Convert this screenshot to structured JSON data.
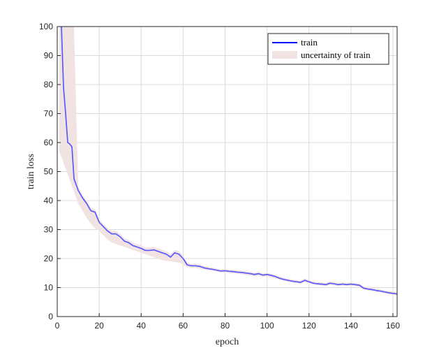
{
  "chart_data": {
    "type": "line",
    "title": "",
    "xlabel": "epoch",
    "ylabel": "train loss",
    "xlim": [
      0,
      162
    ],
    "ylim": [
      0,
      100
    ],
    "xticks": [
      "0",
      "20",
      "40",
      "60",
      "80",
      "100",
      "120",
      "140",
      "160"
    ],
    "yticks": [
      "0",
      "10",
      "20",
      "30",
      "40",
      "50",
      "60",
      "70",
      "80",
      "90",
      "100"
    ],
    "grid": true,
    "legend_position": "top-right",
    "series": [
      {
        "name": "train",
        "color": "#0000ff",
        "x": [
          1,
          2,
          3,
          4,
          5,
          6,
          7,
          8,
          10,
          12,
          14,
          16,
          18,
          20,
          22,
          24,
          26,
          28,
          30,
          32,
          34,
          36,
          38,
          40,
          42,
          44,
          46,
          48,
          50,
          52,
          54,
          56,
          58,
          60,
          62,
          64,
          66,
          68,
          70,
          72,
          74,
          76,
          78,
          80,
          82,
          84,
          86,
          88,
          90,
          92,
          94,
          96,
          98,
          100,
          102,
          104,
          106,
          108,
          110,
          112,
          114,
          116,
          118,
          120,
          122,
          124,
          126,
          128,
          130,
          132,
          134,
          136,
          138,
          140,
          142,
          144,
          146,
          148,
          150,
          152,
          154,
          156,
          158,
          160,
          162
        ],
        "y": [
          140,
          100,
          79,
          70,
          60,
          59.5,
          58.5,
          47.5,
          43.5,
          41,
          39,
          36.5,
          36,
          32.5,
          31,
          29.5,
          28.5,
          28.5,
          27.5,
          26,
          25.5,
          24.5,
          24,
          23.5,
          22.8,
          22.8,
          23,
          22.5,
          22,
          21.5,
          20.5,
          22,
          21.5,
          20,
          17.8,
          17.5,
          17.5,
          17.3,
          16.8,
          16.5,
          16.3,
          16,
          15.7,
          15.8,
          15.6,
          15.5,
          15.3,
          15.2,
          15,
          14.8,
          14.5,
          14.8,
          14.3,
          14.5,
          14.2,
          13.8,
          13.2,
          12.8,
          12.5,
          12.2,
          12,
          11.8,
          12.5,
          12,
          11.5,
          11.3,
          11.2,
          11,
          11.5,
          11.3,
          11,
          11.2,
          11,
          11.2,
          11,
          10.8,
          9.8,
          9.5,
          9.3,
          9,
          8.8,
          8.5,
          8.2,
          8,
          7.8
        ]
      }
    ],
    "uncertainty": {
      "name": "uncertainty of train",
      "color": "#f2e3e3",
      "x": [
        1,
        2,
        3,
        4,
        5,
        6,
        7,
        8,
        10,
        12,
        14,
        16,
        18,
        20,
        22,
        24,
        26,
        28,
        30,
        32,
        34,
        36,
        38,
        40,
        42,
        44,
        46,
        48,
        50,
        52,
        54,
        56,
        58,
        60,
        62,
        64,
        66,
        68,
        70,
        72,
        74,
        76,
        78,
        80,
        82,
        84,
        86,
        88,
        90,
        92,
        94,
        96,
        98,
        100,
        102,
        104,
        106,
        108,
        110,
        112,
        114,
        116,
        118,
        120,
        122,
        124,
        126,
        128,
        130,
        132,
        134,
        136,
        138,
        140,
        142,
        144,
        146,
        148,
        150,
        152,
        154,
        156,
        158,
        160,
        162
      ],
      "lower": [
        57,
        55,
        53,
        51,
        49,
        47,
        45,
        43,
        39,
        36.5,
        34,
        32,
        30.5,
        29.5,
        28,
        26.5,
        25.5,
        25,
        24.5,
        24,
        23.5,
        23,
        22.5,
        22,
        21.5,
        21,
        20.5,
        20,
        19.5,
        19.2,
        19,
        18.8,
        18.6,
        18,
        17,
        16.8,
        16.8,
        16.5,
        16.2,
        16,
        15.8,
        15.5,
        15.2,
        15.2,
        15,
        14.9,
        14.7,
        14.5,
        14.3,
        14.1,
        13.9,
        14,
        13.7,
        13.8,
        13.5,
        13.2,
        12.7,
        12.3,
        12,
        11.7,
        11.5,
        11.3,
        11.9,
        11.5,
        11,
        10.8,
        10.7,
        10.5,
        10.9,
        10.7,
        10.5,
        10.6,
        10.5,
        10.6,
        10.5,
        10.3,
        9.3,
        9,
        8.8,
        8.5,
        8.3,
        8,
        7.7,
        7.5,
        7.3
      ],
      "upper": [
        140,
        140,
        140,
        140,
        140,
        140,
        140,
        100,
        45,
        42,
        40,
        37.5,
        37,
        33.5,
        32,
        30.5,
        29.5,
        29.5,
        28.5,
        27,
        26.5,
        25.5,
        25,
        24.5,
        23.8,
        23.8,
        24,
        23.5,
        23,
        22.5,
        21.5,
        23,
        22.5,
        21,
        18.6,
        18.2,
        18.2,
        18,
        17.4,
        17.1,
        16.9,
        16.6,
        16.3,
        16.4,
        16.2,
        16.1,
        15.9,
        15.8,
        15.6,
        15.4,
        15.1,
        15.4,
        14.9,
        15.1,
        14.8,
        14.4,
        13.8,
        13.4,
        13.1,
        12.8,
        12.6,
        12.4,
        13.1,
        12.6,
        12.1,
        11.9,
        11.8,
        11.6,
        12.1,
        11.9,
        11.6,
        11.8,
        11.6,
        11.8,
        11.6,
        11.4,
        10.4,
        10.1,
        9.9,
        9.6,
        9.4,
        9.1,
        8.8,
        8.6,
        8.4
      ]
    }
  }
}
